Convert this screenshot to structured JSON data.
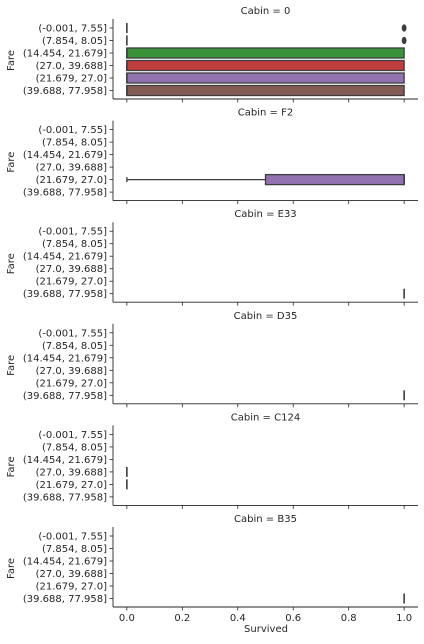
{
  "chart_data": {
    "type": "box",
    "layout": "facet-grid",
    "xlabel": "Survived",
    "ylabel": "Fare",
    "xlim": [
      -0.05,
      1.05
    ],
    "xticks": [
      "0.0",
      "0.2",
      "0.4",
      "0.6",
      "0.8",
      "1.0"
    ],
    "xtick_values": [
      0,
      0.2,
      0.4,
      0.6,
      0.8,
      1.0
    ],
    "categories": [
      "(-0.001, 7.55]",
      "(7.854, 8.05]",
      "(14.454, 21.679]",
      "(27.0, 39.688]",
      "(21.679, 27.0]",
      "(39.688, 77.958]"
    ],
    "palette": [
      "#3274a1",
      "#e1812c",
      "#3a923a",
      "#c03d3e",
      "#9372b2",
      "#845b53"
    ],
    "facets": [
      {
        "title": "Cabin = 0",
        "boxes": [
          {
            "category": "(-0.001, 7.55]",
            "q1": 0,
            "median": 0,
            "q3": 0,
            "whisker_low": 0,
            "whisker_high": 0,
            "outliers": [
              1
            ]
          },
          {
            "category": "(7.854, 8.05]",
            "q1": 0,
            "median": 0,
            "q3": 0,
            "whisker_low": 0,
            "whisker_high": 0,
            "outliers": [
              1
            ]
          },
          {
            "category": "(14.454, 21.679]",
            "q1": 0,
            "median": 0,
            "q3": 1,
            "whisker_low": 0,
            "whisker_high": 1,
            "outliers": []
          },
          {
            "category": "(27.0, 39.688]",
            "q1": 0,
            "median": 0,
            "q3": 1,
            "whisker_low": 0,
            "whisker_high": 1,
            "outliers": []
          },
          {
            "category": "(21.679, 27.0]",
            "q1": 0,
            "median": 0,
            "q3": 1,
            "whisker_low": 0,
            "whisker_high": 1,
            "outliers": []
          },
          {
            "category": "(39.688, 77.958]",
            "q1": 0,
            "median": 0,
            "q3": 1,
            "whisker_low": 0,
            "whisker_high": 1,
            "outliers": []
          }
        ]
      },
      {
        "title": "Cabin = F2",
        "boxes": [
          {
            "category": "(21.679, 27.0]",
            "q1": 0.5,
            "median": 1,
            "q3": 1,
            "whisker_low": 0,
            "whisker_high": 1,
            "outliers": []
          }
        ]
      },
      {
        "title": "Cabin = E33",
        "boxes": [
          {
            "category": "(39.688, 77.958]",
            "q1": 1,
            "median": 1,
            "q3": 1,
            "whisker_low": 1,
            "whisker_high": 1,
            "outliers": []
          }
        ]
      },
      {
        "title": "Cabin = D35",
        "boxes": [
          {
            "category": "(39.688, 77.958]",
            "q1": 1,
            "median": 1,
            "q3": 1,
            "whisker_low": 1,
            "whisker_high": 1,
            "outliers": []
          }
        ]
      },
      {
        "title": "Cabin = C124",
        "boxes": [
          {
            "category": "(27.0, 39.688]",
            "q1": 0,
            "median": 0,
            "q3": 0,
            "whisker_low": 0,
            "whisker_high": 0,
            "outliers": []
          },
          {
            "category": "(21.679, 27.0]",
            "q1": 0,
            "median": 0,
            "q3": 0,
            "whisker_low": 0,
            "whisker_high": 0,
            "outliers": []
          }
        ]
      },
      {
        "title": "Cabin = B35",
        "boxes": [
          {
            "category": "(39.688, 77.958]",
            "q1": 1,
            "median": 1,
            "q3": 1,
            "whisker_low": 1,
            "whisker_high": 1,
            "outliers": []
          }
        ]
      }
    ]
  }
}
